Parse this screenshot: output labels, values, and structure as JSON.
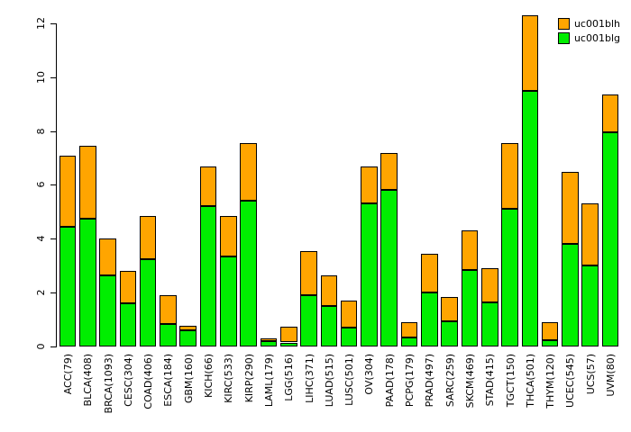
{
  "chart_data": {
    "type": "bar",
    "stacked": true,
    "title": "",
    "xlabel": "",
    "ylabel": "",
    "ylim": [
      0,
      12.4
    ],
    "yticks": [
      0,
      2,
      4,
      6,
      8,
      10,
      12
    ],
    "grid": false,
    "legend_position": "top-right",
    "legend": [
      {
        "label": "uc001blh",
        "color": "#FFA500"
      },
      {
        "label": "uc001blg",
        "color": "#00EE00"
      }
    ],
    "categories": [
      "ACC(79)",
      "BLCA(408)",
      "BRCA(1093)",
      "CESC(304)",
      "COAD(406)",
      "ESCA(184)",
      "GBM(160)",
      "KICH(66)",
      "KIRC(533)",
      "KIRP(290)",
      "LAML(179)",
      "LGG(516)",
      "LIHC(371)",
      "LUAD(515)",
      "LUSC(501)",
      "OV(304)",
      "PAAD(178)",
      "PCPG(179)",
      "PRAD(497)",
      "SARC(259)",
      "SKCM(469)",
      "STAD(415)",
      "TGCT(150)",
      "THCA(501)",
      "THYM(120)",
      "UCEC(545)",
      "UCS(57)",
      "UVM(80)"
    ],
    "series": [
      {
        "name": "uc001blg",
        "color": "#00EE00",
        "values": [
          4.45,
          4.75,
          2.65,
          1.6,
          3.25,
          0.85,
          0.6,
          5.2,
          3.35,
          5.4,
          0.2,
          0.15,
          1.9,
          1.5,
          0.7,
          5.3,
          5.8,
          0.35,
          2.0,
          0.95,
          2.85,
          1.65,
          5.1,
          9.5,
          0.25,
          3.8,
          3.0,
          7.95
        ]
      },
      {
        "name": "uc001blh",
        "color": "#FFA500",
        "values": [
          2.65,
          2.7,
          1.35,
          1.2,
          1.6,
          1.05,
          0.18,
          1.5,
          1.5,
          2.15,
          0.1,
          0.6,
          1.65,
          1.15,
          1.0,
          1.4,
          1.4,
          0.55,
          1.45,
          0.9,
          1.45,
          1.25,
          2.45,
          2.8,
          0.65,
          2.7,
          2.3,
          1.4
        ]
      }
    ]
  }
}
